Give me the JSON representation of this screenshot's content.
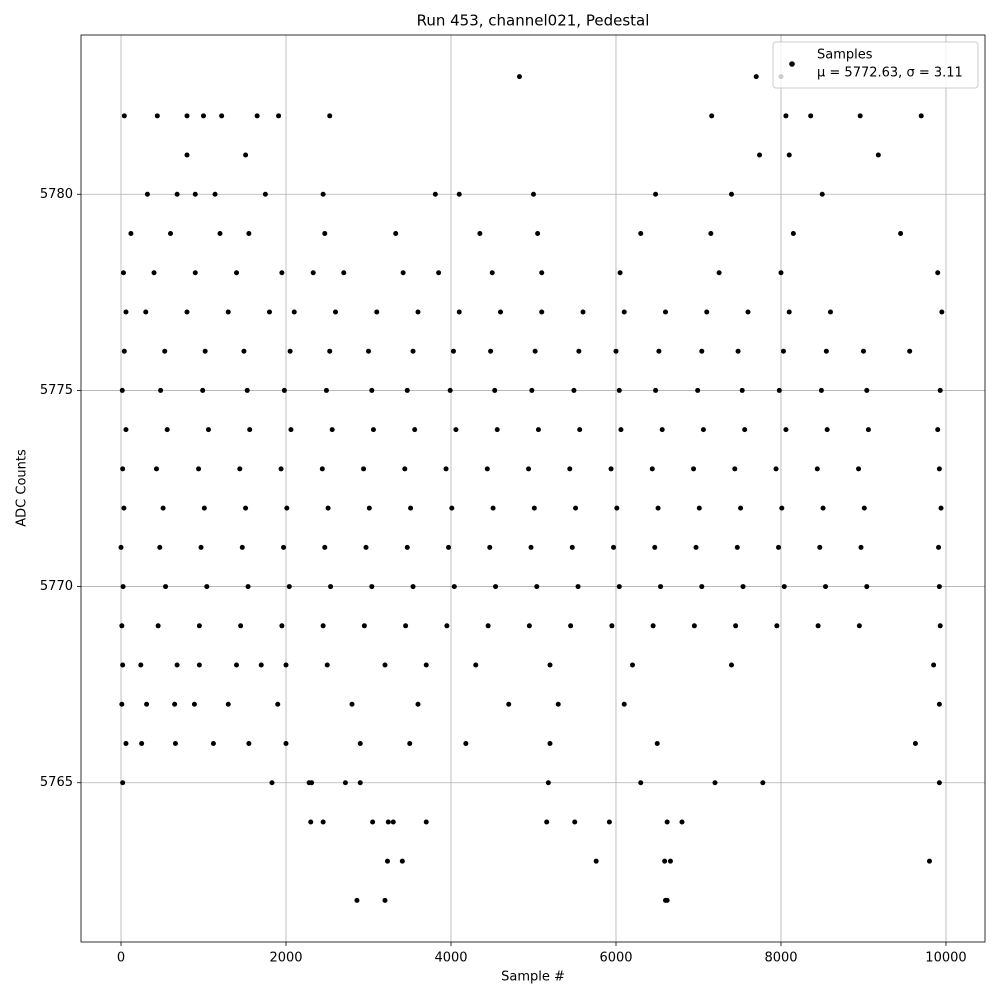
{
  "chart_data": {
    "type": "scatter",
    "title": "Run 453, channel021, Pedestal",
    "xlabel": "Sample #",
    "ylabel": "ADC Counts",
    "legend_note": "μ = 5772.63, σ = 3.11",
    "legend": "upper right",
    "grid": true,
    "xlim": [
      -485,
      10473
    ],
    "ylim": [
      5760.94,
      5784.06
    ],
    "xticks": [
      0,
      2000,
      4000,
      6000,
      8000,
      10000
    ],
    "yticks": [
      5765,
      5770,
      5775,
      5780
    ],
    "x": [
      40,
      530,
      1020,
      1490,
      2050,
      2530,
      3000,
      3540,
      4030,
      4480,
      5020,
      5550,
      6000,
      6520,
      7040,
      7480,
      8030,
      8550,
      9000,
      9560,
      15,
      480,
      990,
      1530,
      1980,
      2490,
      3040,
      3470,
      3990,
      4530,
      4980,
      5490,
      6040,
      6480,
      6990,
      7530,
      7980,
      8490,
      9040,
      9930,
      60,
      560,
      1060,
      1560,
      2060,
      2560,
      3060,
      3560,
      4060,
      4560,
      5060,
      5560,
      6060,
      6560,
      7060,
      7560,
      8060,
      8560,
      9060,
      9900,
      20,
      430,
      940,
      1440,
      1940,
      2440,
      2940,
      3440,
      3940,
      4440,
      4940,
      5440,
      5940,
      6440,
      6940,
      7440,
      7940,
      8440,
      8940,
      9920,
      35,
      510,
      1010,
      1510,
      2010,
      2510,
      3010,
      3510,
      4010,
      4510,
      5010,
      5510,
      6010,
      6510,
      7010,
      7510,
      8010,
      8510,
      9010,
      9940,
      0,
      470,
      970,
      1470,
      1970,
      2470,
      2970,
      3470,
      3970,
      4470,
      4970,
      5470,
      5970,
      6470,
      6970,
      7470,
      7970,
      8470,
      8970,
      9910,
      25,
      540,
      1040,
      1540,
      2040,
      2540,
      3040,
      3540,
      4040,
      4540,
      5040,
      5540,
      6040,
      6540,
      7040,
      7540,
      8040,
      8540,
      9040,
      9920,
      10,
      450,
      950,
      1450,
      1950,
      2450,
      2950,
      3450,
      3950,
      4450,
      4950,
      5450,
      5950,
      6450,
      6950,
      7450,
      7950,
      8450,
      8950,
      9930,
      60,
      300,
      800,
      1300,
      1800,
      2100,
      2600,
      3100,
      3600,
      4100,
      4600,
      5100,
      5600,
      6100,
      6600,
      7100,
      7600,
      8100,
      8600,
      9950,
      30,
      400,
      900,
      1400,
      1950,
      2330,
      2700,
      3420,
      3850,
      4500,
      5100,
      6050,
      7250,
      8000,
      9900,
      120,
      600,
      1200,
      1550,
      2470,
      3330,
      4350,
      5050,
      6300,
      7150,
      8150,
      9450,
      320,
      680,
      900,
      1140,
      1750,
      2450,
      3810,
      4100,
      5000,
      6480,
      7400,
      8500,
      20,
      240,
      680,
      950,
      1400,
      1700,
      2000,
      2500,
      3200,
      3700,
      4300,
      5200,
      6200,
      7400,
      9850,
      10,
      310,
      650,
      890,
      1300,
      1900,
      2800,
      3600,
      4700,
      5300,
      6100,
      9920,
      60,
      250,
      660,
      1120,
      1550,
      2000,
      2900,
      3500,
      4180,
      5200,
      6500,
      9630,
      40,
      440,
      800,
      1000,
      1220,
      1650,
      1910,
      2530,
      800,
      1510,
      4830,
      7700,
      8000,
      7160,
      8060,
      8360,
      8960,
      9700,
      7740,
      8100,
      9180,
      2860,
      3200,
      6600,
      6620,
      3230,
      3410,
      5760,
      6590,
      6660,
      9800,
      20,
      1830,
      2280,
      2310,
      2720,
      2900,
      3050,
      3240,
      3300,
      2300,
      2450,
      3700,
      5160,
      5500,
      5920,
      6620,
      6800,
      9920,
      7200,
      7780,
      5180,
      6300
    ],
    "series": [
      {
        "name": "Samples",
        "color": "#000000",
        "values": [
          5776,
          5776,
          5776,
          5776,
          5776,
          5776,
          5776,
          5776,
          5776,
          5776,
          5776,
          5776,
          5776,
          5776,
          5776,
          5776,
          5776,
          5776,
          5776,
          5776,
          5775,
          5775,
          5775,
          5775,
          5775,
          5775,
          5775,
          5775,
          5775,
          5775,
          5775,
          5775,
          5775,
          5775,
          5775,
          5775,
          5775,
          5775,
          5775,
          5775,
          5774,
          5774,
          5774,
          5774,
          5774,
          5774,
          5774,
          5774,
          5774,
          5774,
          5774,
          5774,
          5774,
          5774,
          5774,
          5774,
          5774,
          5774,
          5774,
          5774,
          5773,
          5773,
          5773,
          5773,
          5773,
          5773,
          5773,
          5773,
          5773,
          5773,
          5773,
          5773,
          5773,
          5773,
          5773,
          5773,
          5773,
          5773,
          5773,
          5773,
          5772,
          5772,
          5772,
          5772,
          5772,
          5772,
          5772,
          5772,
          5772,
          5772,
          5772,
          5772,
          5772,
          5772,
          5772,
          5772,
          5772,
          5772,
          5772,
          5772,
          5771,
          5771,
          5771,
          5771,
          5771,
          5771,
          5771,
          5771,
          5771,
          5771,
          5771,
          5771,
          5771,
          5771,
          5771,
          5771,
          5771,
          5771,
          5771,
          5771,
          5770,
          5770,
          5770,
          5770,
          5770,
          5770,
          5770,
          5770,
          5770,
          5770,
          5770,
          5770,
          5770,
          5770,
          5770,
          5770,
          5770,
          5770,
          5770,
          5770,
          5769,
          5769,
          5769,
          5769,
          5769,
          5769,
          5769,
          5769,
          5769,
          5769,
          5769,
          5769,
          5769,
          5769,
          5769,
          5769,
          5769,
          5769,
          5769,
          5769,
          5777,
          5777,
          5777,
          5777,
          5777,
          5777,
          5777,
          5777,
          5777,
          5777,
          5777,
          5777,
          5777,
          5777,
          5777,
          5777,
          5777,
          5777,
          5777,
          5777,
          5778,
          5778,
          5778,
          5778,
          5778,
          5778,
          5778,
          5778,
          5778,
          5778,
          5778,
          5778,
          5778,
          5778,
          5778,
          5779,
          5779,
          5779,
          5779,
          5779,
          5779,
          5779,
          5779,
          5779,
          5779,
          5779,
          5779,
          5780,
          5780,
          5780,
          5780,
          5780,
          5780,
          5780,
          5780,
          5780,
          5780,
          5780,
          5780,
          5768,
          5768,
          5768,
          5768,
          5768,
          5768,
          5768,
          5768,
          5768,
          5768,
          5768,
          5768,
          5768,
          5768,
          5768,
          5767,
          5767,
          5767,
          5767,
          5767,
          5767,
          5767,
          5767,
          5767,
          5767,
          5767,
          5767,
          5766,
          5766,
          5766,
          5766,
          5766,
          5766,
          5766,
          5766,
          5766,
          5766,
          5766,
          5766,
          5782,
          5782,
          5782,
          5782,
          5782,
          5782,
          5782,
          5782,
          5781,
          5781,
          5783,
          5783,
          5783,
          5782,
          5782,
          5782,
          5782,
          5782,
          5781,
          5781,
          5781,
          5762,
          5762,
          5762,
          5762,
          5763,
          5763,
          5763,
          5763,
          5763,
          5763,
          5765,
          5765,
          5765,
          5765,
          5765,
          5765,
          5764,
          5764,
          5764,
          5764,
          5764,
          5764,
          5764,
          5764,
          5764,
          5764,
          5764,
          5765,
          5765,
          5765,
          5765,
          5765
        ]
      }
    ]
  }
}
